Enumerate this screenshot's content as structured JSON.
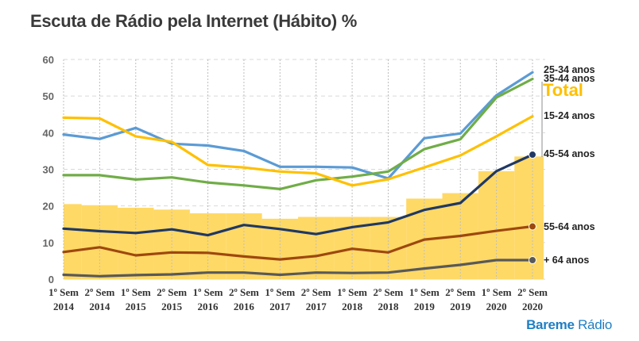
{
  "title": "Escuta de Rádio pela Internet (Hábito) %",
  "logo": {
    "brand": "Bareme",
    "product": "Rádio",
    "color": "#1f7fc4"
  },
  "chart_data": {
    "type": "line",
    "title": "Escuta de Rádio pela Internet (Hábito) %",
    "xlabel": "",
    "ylabel": "",
    "ylim": [
      0,
      60
    ],
    "yticks": [
      0,
      10,
      20,
      30,
      40,
      50,
      60
    ],
    "grid": "horizontal dashed",
    "categories": [
      [
        "1º Sem",
        "2014"
      ],
      [
        "2º Sem",
        "2014"
      ],
      [
        "1º Sem",
        "2015"
      ],
      [
        "2º Sem",
        "2015"
      ],
      [
        "1º Sem",
        "2016"
      ],
      [
        "2º Sem",
        "2016"
      ],
      [
        "1º Sem",
        "2017"
      ],
      [
        "2º Sem",
        "2017"
      ],
      [
        "1º Sem",
        "2018"
      ],
      [
        "2º Sem",
        "2018"
      ],
      [
        "1º Sem",
        "2019"
      ],
      [
        "2º Sem",
        "2019"
      ],
      [
        "1º Sem",
        "2020"
      ],
      [
        "2º Sem",
        "2020"
      ]
    ],
    "total": {
      "name": "Total",
      "color": "#ffd966",
      "label_color": "#ffc000",
      "values": [
        20.5,
        20.2,
        19.5,
        19,
        18,
        18,
        16.5,
        17,
        17,
        17,
        22,
        23.5,
        29.5,
        33.5
      ]
    },
    "series": [
      {
        "name": "25-34 anos",
        "color": "#5b9bd5",
        "values": [
          39.5,
          38.3,
          41.3,
          37,
          36.5,
          35,
          30.7,
          30.7,
          30.5,
          27.5,
          38.5,
          39.8,
          50.2,
          56.5
        ]
      },
      {
        "name": "35-44 anos",
        "color": "#70ad47",
        "values": [
          28.4,
          28.4,
          27.2,
          27.8,
          26.4,
          25.6,
          24.6,
          27,
          28,
          29.4,
          35.5,
          38.2,
          49.6,
          54.7
        ]
      },
      {
        "name": "15-24 anos",
        "color": "#ffc000",
        "values": [
          44.1,
          43.9,
          39,
          37.5,
          31.2,
          30.5,
          29.4,
          28.9,
          25.6,
          27.3,
          30.5,
          33.8,
          39,
          44.5
        ]
      },
      {
        "name": "45-54 anos",
        "color": "#203864",
        "values": [
          13.8,
          13.1,
          12.6,
          13.6,
          12,
          14.8,
          13.7,
          12.3,
          14.2,
          15.5,
          18.9,
          20.8,
          29.5,
          34
        ]
      },
      {
        "name": "55-64 anos",
        "color": "#9e480e",
        "values": [
          7.4,
          8.7,
          6.5,
          7.3,
          7.2,
          6.2,
          5.4,
          6.3,
          8.3,
          7.3,
          10.8,
          11.8,
          13.2,
          14.4
        ]
      },
      {
        "name": "+ 64  anos",
        "color": "#595959",
        "values": [
          1.2,
          0.8,
          1.1,
          1.3,
          1.8,
          1.8,
          1.2,
          1.8,
          1.7,
          1.8,
          2.9,
          3.9,
          5.2,
          5.2
        ]
      }
    ]
  }
}
